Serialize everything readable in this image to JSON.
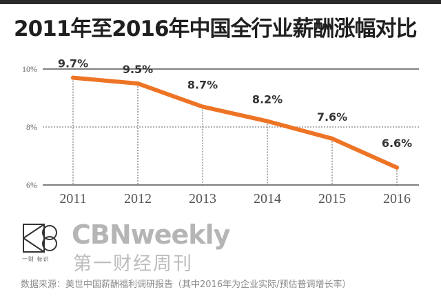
{
  "title": "2011年至2016年中国全行业薪酬涨幅对比",
  "chart_data": {
    "type": "line",
    "title": "2011年至2016年中国全行业薪酬涨幅对比",
    "xlabel": "",
    "ylabel": "",
    "categories": [
      "2011",
      "2012",
      "2013",
      "2014",
      "2015",
      "2016"
    ],
    "series": [
      {
        "values": [
          9.7,
          9.5,
          8.7,
          8.2,
          7.6,
          6.6
        ],
        "labels": [
          "9.7%",
          "9.5%",
          "8.7%",
          "8.2%",
          "7.6%",
          "6.6%"
        ],
        "color": "#ee7425"
      }
    ],
    "yticks": [
      {
        "value": 10,
        "label": "10%"
      },
      {
        "value": 8,
        "label": "8%"
      },
      {
        "value": 6,
        "label": "6%"
      }
    ],
    "ylim": [
      6,
      10
    ],
    "grid": "horizontal dotted at 8%, solid at 10% and 6%, dotted vertical drop lines at each year"
  },
  "brand": {
    "name": "CBNweekly",
    "name_cn": "第一财经周刊",
    "logo_caption": "一财 标识"
  },
  "source": "数据来源：美世中国薪酬福利调研报告（其中2016年为企业实际/预估普调增长率）",
  "colors": {
    "line": "#ee7425",
    "axis": "#333333",
    "grid": "#555555",
    "title": "#1f1f1f",
    "brand": "#b5b5b5"
  }
}
